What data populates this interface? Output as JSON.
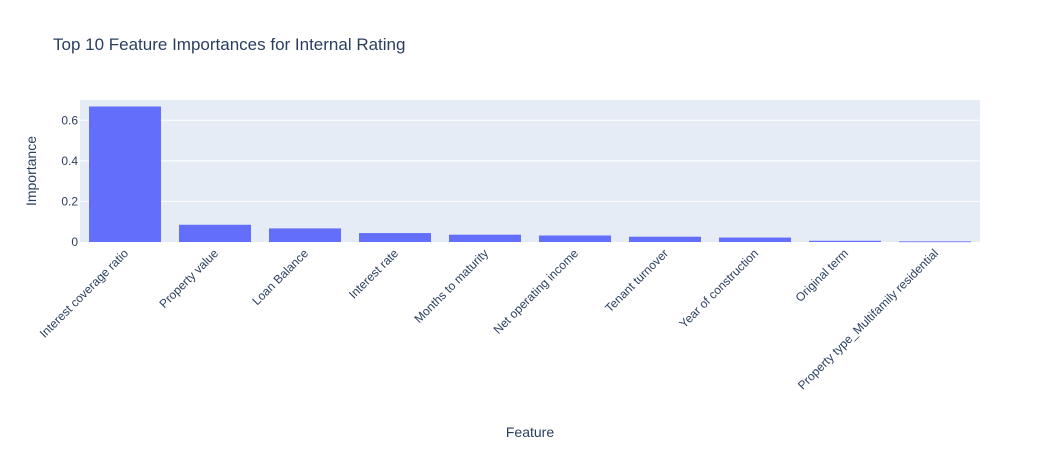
{
  "chart_data": {
    "type": "bar",
    "title": "Top 10 Feature Importances for Internal Rating",
    "xlabel": "Feature",
    "ylabel": "Importance",
    "categories": [
      "Interest coverage ratio",
      "Property value",
      "Loan Balance",
      "Interest rate",
      "Months to maturity",
      "Net operating income",
      "Tenant turnover",
      "Year of construction",
      "Original term",
      "Property type_Multifamily residential"
    ],
    "values": [
      0.668,
      0.085,
      0.067,
      0.044,
      0.036,
      0.032,
      0.026,
      0.022,
      0.006,
      0.003
    ],
    "ylim": [
      0,
      0.7
    ],
    "yticks": [
      0,
      0.2,
      0.4,
      0.6
    ],
    "ytick_labels": [
      "0",
      "0.2",
      "0.4",
      "0.6"
    ],
    "grid": true,
    "legend": "none",
    "colors": {
      "bar": "#636efa",
      "plot_bg": "#e5ecf6",
      "grid": "#ffffff",
      "text": "#2a3f5f"
    }
  }
}
